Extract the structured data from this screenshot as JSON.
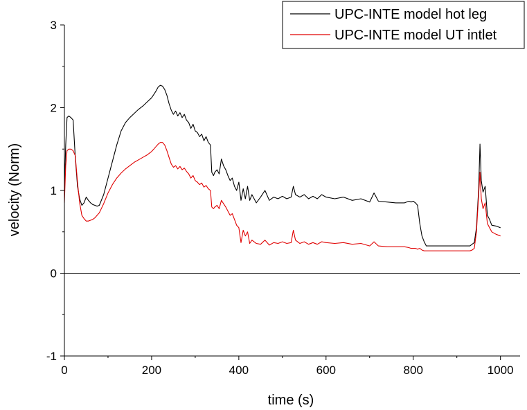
{
  "chart_data": {
    "type": "line",
    "title": "",
    "xlabel": "time (s)",
    "ylabel": "velocity (Norm)",
    "xlim": [
      0,
      1045
    ],
    "ylim": [
      -1,
      3
    ],
    "x_ticks": [
      0,
      200,
      400,
      600,
      800,
      1000
    ],
    "y_ticks": [
      -1,
      0,
      1,
      2,
      3
    ],
    "grid": false,
    "legend_position": "top-right",
    "zero_line": true,
    "series": [
      {
        "name": "UPC-INTE model hot leg",
        "color": "#000000",
        "x": [
          0,
          3,
          6,
          10,
          15,
          20,
          25,
          30,
          35,
          40,
          45,
          50,
          55,
          60,
          65,
          70,
          75,
          80,
          90,
          100,
          110,
          120,
          130,
          140,
          150,
          160,
          170,
          180,
          190,
          200,
          205,
          210,
          215,
          220,
          225,
          230,
          235,
          240,
          245,
          250,
          255,
          260,
          265,
          270,
          275,
          280,
          285,
          290,
          295,
          300,
          305,
          310,
          315,
          320,
          325,
          330,
          335,
          338,
          342,
          345,
          350,
          355,
          360,
          365,
          370,
          375,
          380,
          385,
          390,
          395,
          400,
          405,
          410,
          415,
          420,
          425,
          430,
          440,
          450,
          460,
          470,
          480,
          490,
          500,
          510,
          520,
          525,
          530,
          540,
          550,
          560,
          570,
          580,
          590,
          600,
          620,
          640,
          660,
          680,
          700,
          710,
          720,
          740,
          760,
          780,
          790,
          795,
          800,
          805,
          810,
          815,
          820,
          825,
          830,
          840,
          860,
          880,
          900,
          920,
          930,
          935,
          940,
          945,
          950,
          953,
          956,
          960,
          965,
          970,
          975,
          980,
          990,
          1000
        ],
        "y": [
          1.0,
          1.55,
          1.88,
          1.9,
          1.88,
          1.85,
          1.4,
          1.05,
          0.9,
          0.82,
          0.85,
          0.92,
          0.88,
          0.85,
          0.83,
          0.82,
          0.81,
          0.82,
          0.95,
          1.15,
          1.35,
          1.55,
          1.72,
          1.82,
          1.88,
          1.93,
          1.98,
          2.02,
          2.07,
          2.12,
          2.16,
          2.2,
          2.25,
          2.27,
          2.26,
          2.22,
          2.15,
          2.05,
          1.97,
          1.92,
          1.96,
          1.9,
          1.94,
          1.88,
          1.92,
          1.85,
          1.82,
          1.75,
          1.8,
          1.72,
          1.7,
          1.65,
          1.68,
          1.6,
          1.65,
          1.58,
          1.55,
          1.22,
          1.18,
          1.22,
          1.25,
          1.2,
          1.38,
          1.3,
          1.25,
          1.18,
          1.12,
          1.15,
          1.05,
          1.0,
          1.1,
          0.88,
          1.02,
          0.9,
          1.05,
          0.88,
          0.95,
          0.85,
          0.92,
          1.0,
          0.88,
          0.92,
          0.9,
          0.93,
          0.9,
          0.92,
          1.05,
          0.95,
          0.92,
          0.95,
          0.9,
          0.93,
          0.9,
          0.95,
          0.92,
          0.9,
          0.92,
          0.88,
          0.9,
          0.86,
          0.97,
          0.87,
          0.86,
          0.85,
          0.85,
          0.87,
          0.86,
          0.87,
          0.85,
          0.82,
          0.6,
          0.45,
          0.38,
          0.33,
          0.33,
          0.33,
          0.33,
          0.33,
          0.33,
          0.33,
          0.35,
          0.37,
          0.55,
          1.02,
          1.56,
          1.12,
          0.98,
          1.05,
          0.7,
          0.65,
          0.58,
          0.57,
          0.55
        ]
      },
      {
        "name": "UPC-INTE model UT intlet",
        "color": "#e00000",
        "x": [
          0,
          3,
          6,
          10,
          15,
          20,
          25,
          30,
          35,
          40,
          45,
          50,
          55,
          60,
          65,
          70,
          75,
          80,
          90,
          100,
          110,
          120,
          130,
          140,
          150,
          160,
          170,
          180,
          190,
          200,
          205,
          210,
          215,
          220,
          225,
          230,
          235,
          240,
          245,
          250,
          255,
          260,
          265,
          270,
          275,
          280,
          285,
          290,
          295,
          300,
          305,
          310,
          315,
          320,
          325,
          330,
          335,
          338,
          342,
          345,
          350,
          355,
          360,
          365,
          370,
          375,
          380,
          385,
          390,
          395,
          400,
          405,
          410,
          415,
          420,
          425,
          430,
          440,
          450,
          460,
          470,
          480,
          490,
          500,
          510,
          520,
          525,
          530,
          540,
          550,
          560,
          570,
          580,
          590,
          600,
          620,
          640,
          660,
          680,
          700,
          710,
          720,
          740,
          760,
          780,
          790,
          795,
          800,
          805,
          810,
          815,
          820,
          825,
          830,
          840,
          860,
          880,
          900,
          920,
          930,
          935,
          940,
          945,
          950,
          953,
          956,
          960,
          965,
          970,
          975,
          980,
          990,
          1000
        ],
        "y": [
          0.85,
          1.3,
          1.48,
          1.5,
          1.5,
          1.48,
          1.42,
          1.1,
          0.85,
          0.7,
          0.66,
          0.63,
          0.63,
          0.64,
          0.65,
          0.67,
          0.7,
          0.73,
          0.84,
          0.97,
          1.07,
          1.15,
          1.21,
          1.26,
          1.3,
          1.34,
          1.37,
          1.4,
          1.43,
          1.47,
          1.5,
          1.53,
          1.56,
          1.58,
          1.58,
          1.55,
          1.48,
          1.4,
          1.32,
          1.28,
          1.3,
          1.26,
          1.29,
          1.25,
          1.27,
          1.23,
          1.2,
          1.15,
          1.18,
          1.12,
          1.1,
          1.07,
          1.09,
          1.04,
          1.06,
          1.02,
          1.0,
          0.8,
          0.78,
          0.8,
          0.82,
          0.78,
          0.88,
          0.84,
          0.8,
          0.75,
          0.7,
          0.72,
          0.65,
          0.58,
          0.55,
          0.37,
          0.52,
          0.45,
          0.5,
          0.36,
          0.4,
          0.36,
          0.35,
          0.4,
          0.34,
          0.37,
          0.36,
          0.38,
          0.36,
          0.37,
          0.52,
          0.4,
          0.36,
          0.38,
          0.35,
          0.37,
          0.35,
          0.38,
          0.37,
          0.36,
          0.37,
          0.35,
          0.36,
          0.33,
          0.38,
          0.33,
          0.32,
          0.32,
          0.32,
          0.31,
          0.3,
          0.3,
          0.3,
          0.29,
          0.3,
          0.28,
          0.27,
          0.27,
          0.27,
          0.27,
          0.27,
          0.27,
          0.27,
          0.27,
          0.28,
          0.3,
          0.5,
          0.95,
          1.22,
          0.9,
          0.78,
          0.85,
          0.6,
          0.55,
          0.5,
          0.47,
          0.45
        ]
      }
    ]
  }
}
